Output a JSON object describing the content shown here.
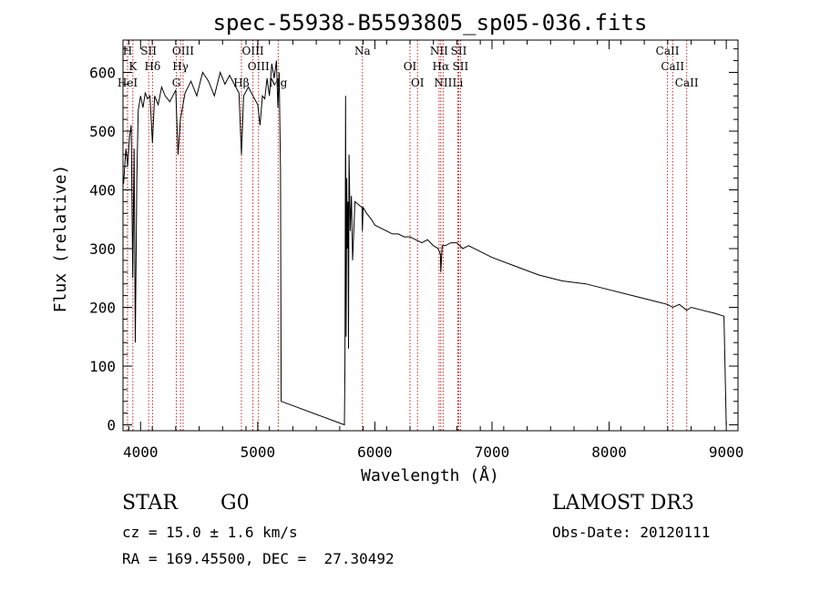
{
  "chart_data": {
    "type": "line",
    "title": "spec-55938-B5593805_sp05-036.fits",
    "xlabel": "Wavelength (Å)",
    "ylabel": "Flux (relative)",
    "xlim": [
      3850,
      9100
    ],
    "ylim": [
      -10,
      655
    ],
    "xticks": [
      4000,
      5000,
      6000,
      7000,
      8000,
      9000
    ],
    "yticks": [
      0,
      100,
      200,
      300,
      400,
      500,
      600
    ],
    "series": [
      {
        "name": "flux",
        "x": [
          3855,
          3875,
          3890,
          3905,
          3920,
          3933,
          3945,
          3955,
          3968,
          3980,
          4000,
          4020,
          4040,
          4060,
          4080,
          4101,
          4120,
          4150,
          4180,
          4210,
          4250,
          4300,
          4320,
          4340,
          4380,
          4430,
          4480,
          4530,
          4580,
          4630,
          4680,
          4720,
          4760,
          4800,
          4840,
          4861,
          4880,
          4920,
          4960,
          5000,
          5020,
          5040,
          5060,
          5080,
          5100,
          5120,
          5140,
          5160,
          5172,
          5183,
          5195,
          5200,
          5740,
          5745,
          5750,
          5755,
          5760,
          5765,
          5770,
          5775,
          5780,
          5790,
          5800,
          5810,
          5830,
          5860,
          5890,
          5893,
          5900,
          5930,
          5970,
          6000,
          6050,
          6100,
          6150,
          6200,
          6250,
          6300,
          6350,
          6400,
          6450,
          6500,
          6540,
          6560,
          6563,
          6575,
          6600,
          6650,
          6700,
          6750,
          6800,
          6900,
          7000,
          7200,
          7400,
          7600,
          7800,
          8000,
          8200,
          8400,
          8498,
          8542,
          8600,
          8662,
          8700,
          8800,
          8900,
          8980,
          9000
        ],
        "values": [
          410,
          470,
          440,
          490,
          510,
          250,
          470,
          140,
          420,
          535,
          560,
          540,
          565,
          555,
          560,
          480,
          560,
          545,
          575,
          560,
          550,
          570,
          460,
          520,
          565,
          585,
          560,
          600,
          585,
          560,
          600,
          580,
          595,
          580,
          565,
          460,
          560,
          575,
          560,
          545,
          510,
          560,
          555,
          590,
          560,
          615,
          590,
          620,
          540,
          600,
          430,
          40,
          0,
          100,
          560,
          150,
          420,
          300,
          380,
          130,
          460,
          330,
          390,
          280,
          380,
          375,
          370,
          330,
          370,
          360,
          350,
          340,
          335,
          330,
          325,
          325,
          320,
          320,
          315,
          310,
          315,
          305,
          300,
          290,
          260,
          305,
          305,
          310,
          310,
          300,
          305,
          295,
          285,
          270,
          255,
          245,
          240,
          230,
          220,
          210,
          205,
          200,
          205,
          195,
          200,
          195,
          190,
          185,
          0
        ]
      }
    ],
    "lines": [
      {
        "name": "H",
        "wl": 3889
      },
      {
        "name": "K",
        "wl": 3934
      },
      {
        "name": "HeI",
        "wl": 3889
      },
      {
        "name": "SII",
        "wl": 4069
      },
      {
        "name": "Hδ",
        "wl": 4102
      },
      {
        "name": "G",
        "wl": 4305
      },
      {
        "name": "OIII",
        "wl": 4363
      },
      {
        "name": "Hγ",
        "wl": 4341
      },
      {
        "name": "Hβ",
        "wl": 4861
      },
      {
        "name": "OIII",
        "wl": 4959
      },
      {
        "name": "OIII",
        "wl": 5007
      },
      {
        "name": "Mg",
        "wl": 5175
      },
      {
        "name": "Na",
        "wl": 5894
      },
      {
        "name": "OI",
        "wl": 6300
      },
      {
        "name": "OI",
        "wl": 6364
      },
      {
        "name": "NII",
        "wl": 6548
      },
      {
        "name": "Hα",
        "wl": 6563
      },
      {
        "name": "NII",
        "wl": 6583
      },
      {
        "name": "SII",
        "wl": 6716
      },
      {
        "name": "SII",
        "wl": 6731
      },
      {
        "name": "Li",
        "wl": 6708
      },
      {
        "name": "CaII",
        "wl": 8498
      },
      {
        "name": "CaII",
        "wl": 8542
      },
      {
        "name": "CaII",
        "wl": 8662
      }
    ],
    "colors": {
      "spectrum": "#000000",
      "line_markers": "#cc2222",
      "axes": "#000000"
    }
  },
  "info": {
    "class": "STAR",
    "subclass": "G0",
    "survey": "LAMOST DR3",
    "cz": "cz = 15.0 ± 1.6 km/s",
    "obs_date": "Obs-Date: 20120111",
    "radec": "RA = 169.45500, DEC =  27.30492"
  }
}
